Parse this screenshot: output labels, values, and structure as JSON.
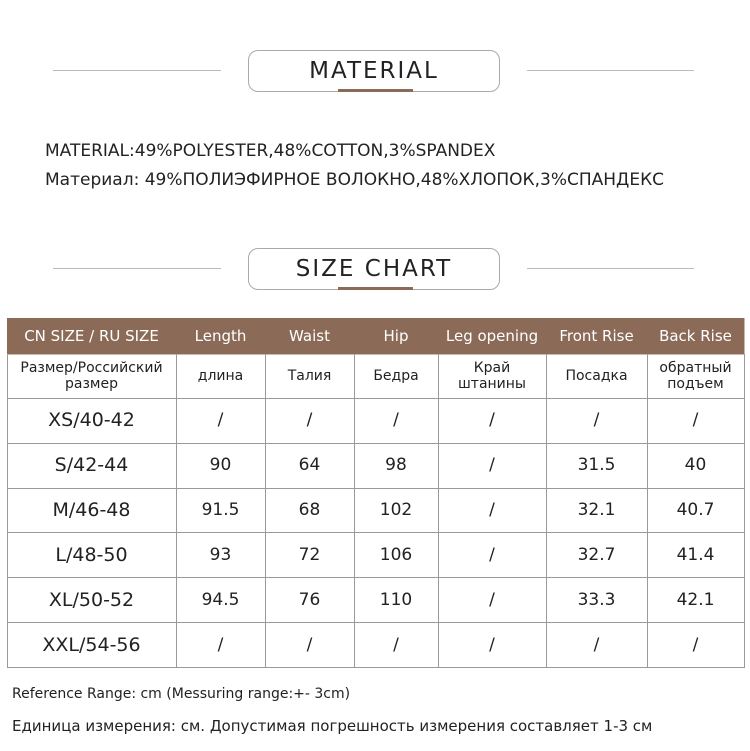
{
  "sections": [
    {
      "title": "MATERIAL"
    },
    {
      "title": "SIZE CHART"
    }
  ],
  "material": [
    {
      "label": "MATERIAL:",
      "text": "49%POLYESTER,48%COTTON,3%SPANDEX"
    },
    {
      "label": "Материал:",
      "text": "49%ПОЛИЭФИРНОЕ ВОЛОКНО,48%ХЛОПОК,3%СПАНДЕКС"
    }
  ],
  "table": {
    "header": [
      "CN SIZE / RU SIZE",
      "Length",
      "Waist",
      "Hip",
      "Leg opening",
      "Front Rise",
      "Back Rise"
    ],
    "subheader": [
      "Размер/Российский размер",
      "длина",
      "Талия",
      "Бедра",
      "Край штанины",
      "Посадка",
      "обратный подъем"
    ],
    "rows": [
      [
        "XS/40-42",
        "/",
        "/",
        "/",
        "/",
        "/",
        "/"
      ],
      [
        "S/42-44",
        "90",
        "64",
        "98",
        "/",
        "31.5",
        "40"
      ],
      [
        "M/46-48",
        "91.5",
        "68",
        "102",
        "/",
        "32.1",
        "40.7"
      ],
      [
        "L/48-50",
        "93",
        "72",
        "106",
        "/",
        "32.7",
        "41.4"
      ],
      [
        "XL/50-52",
        "94.5",
        "76",
        "110",
        "/",
        "33.3",
        "42.1"
      ],
      [
        "XXL/54-56",
        "/",
        "/",
        "/",
        "/",
        "/",
        "/"
      ]
    ]
  },
  "notes": [
    "Reference Range: cm (Messuring range:+- 3cm)",
    "Единица измерения: см. Допустимая погрешность измерения составляет 1-3 см"
  ]
}
